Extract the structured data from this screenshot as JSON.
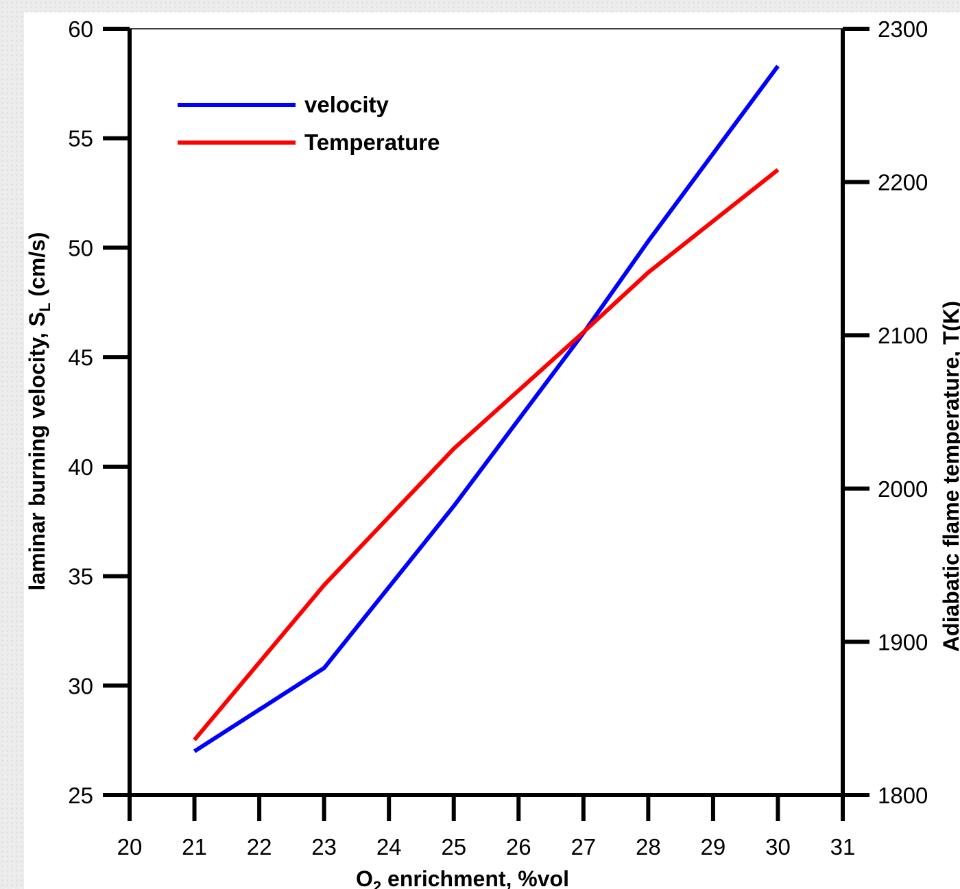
{
  "chart_data": {
    "type": "line",
    "title": "",
    "xlabel": "O2 enrichment, %vol",
    "ylabel": "laminar burning velocity, SL (cm/s)",
    "y2label": "Adiabatic flame temperature, T(K)",
    "xlim": [
      20,
      31
    ],
    "ylim": [
      25,
      60
    ],
    "y2lim": [
      1800,
      2300
    ],
    "x_ticks": [
      "20",
      "21",
      "22",
      "23",
      "24",
      "25",
      "26",
      "27",
      "28",
      "29",
      "30",
      "31"
    ],
    "y_ticks": [
      "25",
      "30",
      "35",
      "40",
      "45",
      "50",
      "55",
      "60"
    ],
    "y2_ticks": [
      "1800",
      "1900",
      "2000",
      "2100",
      "2200",
      "2300"
    ],
    "legend_position": "top-left",
    "series": [
      {
        "name": "velocity",
        "axis": "left",
        "color": "#0000ff",
        "x": [
          21,
          23,
          25,
          27,
          28,
          30
        ],
        "values": [
          27.0,
          30.8,
          38.2,
          46.1,
          50.3,
          58.3
        ]
      },
      {
        "name": "Temperature",
        "axis": "right",
        "color": "#ff0000",
        "x": [
          21,
          23,
          25,
          27,
          28,
          30
        ],
        "values": [
          1836,
          1937,
          2026,
          2102,
          2141,
          2208
        ]
      }
    ]
  }
}
